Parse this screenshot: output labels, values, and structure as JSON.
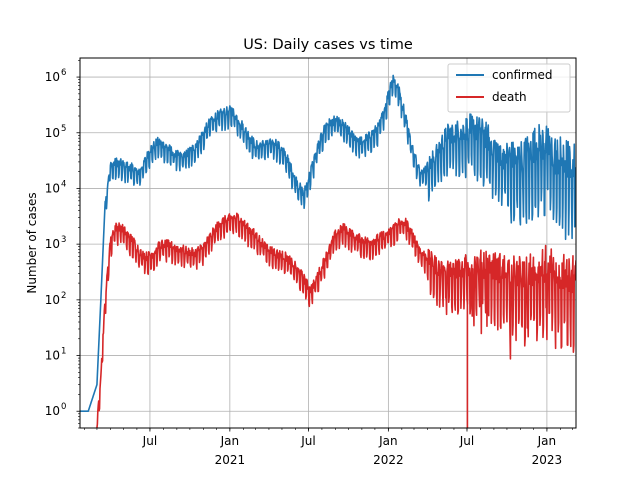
{
  "chart_data": {
    "type": "line",
    "title": "US: Daily  cases vs time",
    "xlabel": "",
    "ylabel": "Number of cases",
    "yscale": "log",
    "ylim": [
      0.5,
      2200000
    ],
    "xlim": [
      "2020-01-22",
      "2023-03-09"
    ],
    "grid": true,
    "legend_position": "top-right",
    "x_ticks": [
      {
        "date": "2020-07-01",
        "label": "Jul",
        "sub": ""
      },
      {
        "date": "2021-01-01",
        "label": "Jan",
        "sub": "2021"
      },
      {
        "date": "2021-07-01",
        "label": "Jul",
        "sub": ""
      },
      {
        "date": "2022-01-01",
        "label": "Jan",
        "sub": "2022"
      },
      {
        "date": "2022-07-01",
        "label": "Jul",
        "sub": ""
      },
      {
        "date": "2023-01-01",
        "label": "Jan",
        "sub": "2023"
      }
    ],
    "y_ticks": [
      {
        "value": 1,
        "label": "10",
        "exp": "0"
      },
      {
        "value": 10,
        "label": "10",
        "exp": "1"
      },
      {
        "value": 100,
        "label": "10",
        "exp": "2"
      },
      {
        "value": 1000,
        "label": "10",
        "exp": "3"
      },
      {
        "value": 10000,
        "label": "10",
        "exp": "4"
      },
      {
        "value": 100000,
        "label": "10",
        "exp": "5"
      },
      {
        "value": 1000000,
        "label": "10",
        "exp": "6"
      }
    ],
    "series": [
      {
        "name": "confirmed",
        "color": "#1f77b4",
        "points": [
          [
            "2020-01-22",
            1
          ],
          [
            "2020-02-10",
            1
          ],
          [
            "2020-03-01",
            3
          ],
          [
            "2020-03-10",
            100
          ],
          [
            "2020-03-20",
            6000
          ],
          [
            "2020-03-31",
            25000
          ],
          [
            "2020-04-15",
            30000
          ],
          [
            "2020-05-15",
            25000
          ],
          [
            "2020-06-05",
            20000
          ],
          [
            "2020-06-20",
            32000
          ],
          [
            "2020-07-01",
            50000
          ],
          [
            "2020-07-20",
            70000
          ],
          [
            "2020-08-10",
            55000
          ],
          [
            "2020-09-01",
            40000
          ],
          [
            "2020-09-20",
            40000
          ],
          [
            "2020-10-10",
            55000
          ],
          [
            "2020-11-01",
            100000
          ],
          [
            "2020-11-20",
            180000
          ],
          [
            "2020-12-10",
            220000
          ],
          [
            "2021-01-05",
            260000
          ],
          [
            "2021-01-20",
            180000
          ],
          [
            "2021-02-10",
            100000
          ],
          [
            "2021-03-01",
            60000
          ],
          [
            "2021-04-01",
            65000
          ],
          [
            "2021-04-15",
            70000
          ],
          [
            "2021-05-10",
            40000
          ],
          [
            "2021-06-01",
            15000
          ],
          [
            "2021-06-20",
            8000
          ],
          [
            "2021-07-01",
            15000
          ],
          [
            "2021-07-20",
            50000
          ],
          [
            "2021-08-10",
            140000
          ],
          [
            "2021-09-01",
            170000
          ],
          [
            "2021-09-20",
            140000
          ],
          [
            "2021-10-10",
            90000
          ],
          [
            "2021-11-01",
            70000
          ],
          [
            "2021-11-20",
            90000
          ],
          [
            "2021-12-10",
            130000
          ],
          [
            "2021-12-25",
            300000
          ],
          [
            "2022-01-05",
            700000
          ],
          [
            "2022-01-12",
            1000000
          ],
          [
            "2022-01-25",
            600000
          ],
          [
            "2022-02-10",
            200000
          ],
          [
            "2022-03-01",
            40000
          ],
          [
            "2022-03-20",
            20000
          ],
          [
            "2022-04-10",
            30000
          ],
          [
            "2022-05-01",
            60000
          ],
          [
            "2022-05-20",
            100000
          ],
          [
            "2022-06-15",
            110000
          ],
          [
            "2022-07-10",
            130000
          ],
          [
            "2022-08-01",
            110000
          ],
          [
            "2022-08-20",
            80000
          ],
          [
            "2022-09-10",
            50000
          ],
          [
            "2022-10-01",
            40000
          ],
          [
            "2022-10-20",
            35000
          ],
          [
            "2022-11-10",
            40000
          ],
          [
            "2022-12-01",
            60000
          ],
          [
            "2022-12-20",
            70000
          ],
          [
            "2023-01-05",
            60000
          ],
          [
            "2023-01-20",
            40000
          ],
          [
            "2023-02-10",
            35000
          ],
          [
            "2023-03-09",
            30000
          ]
        ]
      },
      {
        "name": "death",
        "color": "#d62728",
        "points": [
          [
            "2020-03-01",
            0.5
          ],
          [
            "2020-03-10",
            5
          ],
          [
            "2020-03-20",
            100
          ],
          [
            "2020-03-31",
            1000
          ],
          [
            "2020-04-10",
            2000
          ],
          [
            "2020-04-25",
            2100
          ],
          [
            "2020-05-10",
            1500
          ],
          [
            "2020-05-25",
            1100
          ],
          [
            "2020-06-10",
            700
          ],
          [
            "2020-06-25",
            600
          ],
          [
            "2020-07-10",
            700
          ],
          [
            "2020-07-25",
            1000
          ],
          [
            "2020-08-10",
            1000
          ],
          [
            "2020-08-25",
            900
          ],
          [
            "2020-09-15",
            800
          ],
          [
            "2020-10-10",
            700
          ],
          [
            "2020-11-01",
            900
          ],
          [
            "2020-11-20",
            1500
          ],
          [
            "2020-12-10",
            2500
          ],
          [
            "2021-01-05",
            3000
          ],
          [
            "2021-01-20",
            3100
          ],
          [
            "2021-02-10",
            2000
          ],
          [
            "2021-03-01",
            1500
          ],
          [
            "2021-03-20",
            1000
          ],
          [
            "2021-04-15",
            700
          ],
          [
            "2021-05-10",
            600
          ],
          [
            "2021-06-01",
            400
          ],
          [
            "2021-06-20",
            250
          ],
          [
            "2021-07-05",
            150
          ],
          [
            "2021-07-20",
            250
          ],
          [
            "2021-08-10",
            600
          ],
          [
            "2021-09-01",
            1500
          ],
          [
            "2021-09-20",
            2000
          ],
          [
            "2021-10-10",
            1500
          ],
          [
            "2021-11-01",
            1200
          ],
          [
            "2021-11-20",
            1100
          ],
          [
            "2021-12-10",
            1300
          ],
          [
            "2022-01-05",
            1700
          ],
          [
            "2022-01-25",
            2500
          ],
          [
            "2022-02-10",
            2500
          ],
          [
            "2022-03-01",
            1300
          ],
          [
            "2022-03-20",
            700
          ],
          [
            "2022-04-10",
            500
          ],
          [
            "2022-05-01",
            350
          ],
          [
            "2022-06-01",
            350
          ],
          [
            "2022-07-01",
            400
          ],
          [
            "2022-08-01",
            450
          ],
          [
            "2022-09-01",
            400
          ],
          [
            "2022-10-01",
            350
          ],
          [
            "2022-11-01",
            300
          ],
          [
            "2022-12-01",
            350
          ],
          [
            "2023-01-05",
            450
          ],
          [
            "2023-02-01",
            350
          ],
          [
            "2023-03-09",
            250
          ]
        ]
      }
    ]
  }
}
